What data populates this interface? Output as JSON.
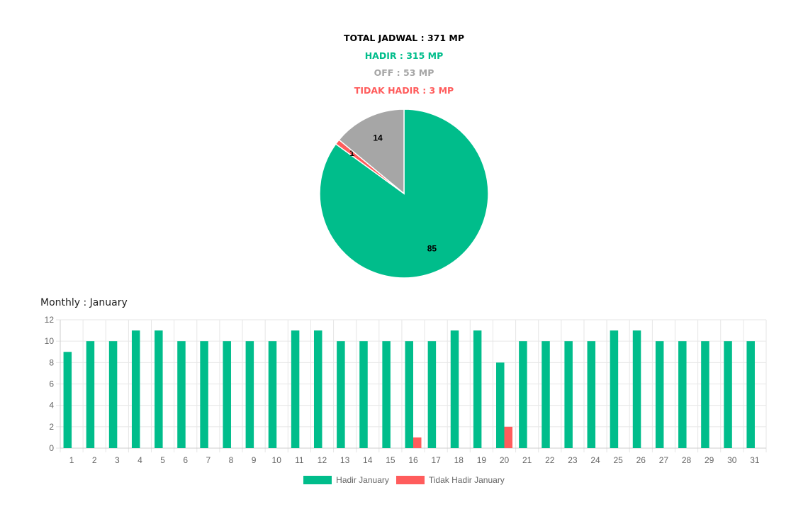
{
  "summary": {
    "total": "TOTAL JADWAL : 371 MP",
    "hadir": "HADIR : 315 MP",
    "off": "OFF : 53 MP",
    "tidak_hadir": "TIDAK HADIR : 3 MP"
  },
  "colors": {
    "hadir": "#00bd8b",
    "off": "#a6a6a6",
    "tidak_hadir": "#ff5c5c",
    "total": "#000000",
    "axis_text": "#666666",
    "grid": "#e6e6e6"
  },
  "monthly_title": "Monthly : January",
  "chart_data": [
    {
      "type": "pie",
      "title": "",
      "slices": [
        {
          "label": "HADIR",
          "value": 85,
          "display": "85",
          "color": "#00bd8b"
        },
        {
          "label": "TIDAK HADIR",
          "value": 1,
          "display": "1",
          "color": "#ff5c5c"
        },
        {
          "label": "OFF",
          "value": 14,
          "display": "14",
          "color": "#a6a6a6"
        }
      ]
    },
    {
      "type": "bar",
      "title": "Monthly : January",
      "xlabel": "",
      "ylabel": "",
      "ylim": [
        0,
        12
      ],
      "yticks": [
        0,
        2,
        4,
        6,
        8,
        10,
        12
      ],
      "grid": true,
      "legend_position": "bottom",
      "categories": [
        "1",
        "2",
        "3",
        "4",
        "5",
        "6",
        "7",
        "8",
        "9",
        "10",
        "11",
        "12",
        "13",
        "14",
        "15",
        "16",
        "17",
        "18",
        "19",
        "20",
        "21",
        "22",
        "23",
        "24",
        "25",
        "26",
        "27",
        "28",
        "29",
        "30",
        "31"
      ],
      "series": [
        {
          "name": "Hadir January",
          "color": "#00bd8b",
          "values": [
            9,
            10,
            10,
            11,
            11,
            10,
            10,
            10,
            10,
            10,
            11,
            11,
            10,
            10,
            10,
            10,
            10,
            11,
            11,
            8,
            10,
            10,
            10,
            10,
            11,
            11,
            10,
            10,
            10,
            10,
            10
          ]
        },
        {
          "name": "Tidak Hadir January",
          "color": "#ff5c5c",
          "values": [
            0,
            0,
            0,
            0,
            0,
            0,
            0,
            0,
            0,
            0,
            0,
            0,
            0,
            0,
            0,
            1,
            0,
            0,
            0,
            2,
            0,
            0,
            0,
            0,
            0,
            0,
            0,
            0,
            0,
            0,
            0
          ]
        }
      ]
    }
  ]
}
